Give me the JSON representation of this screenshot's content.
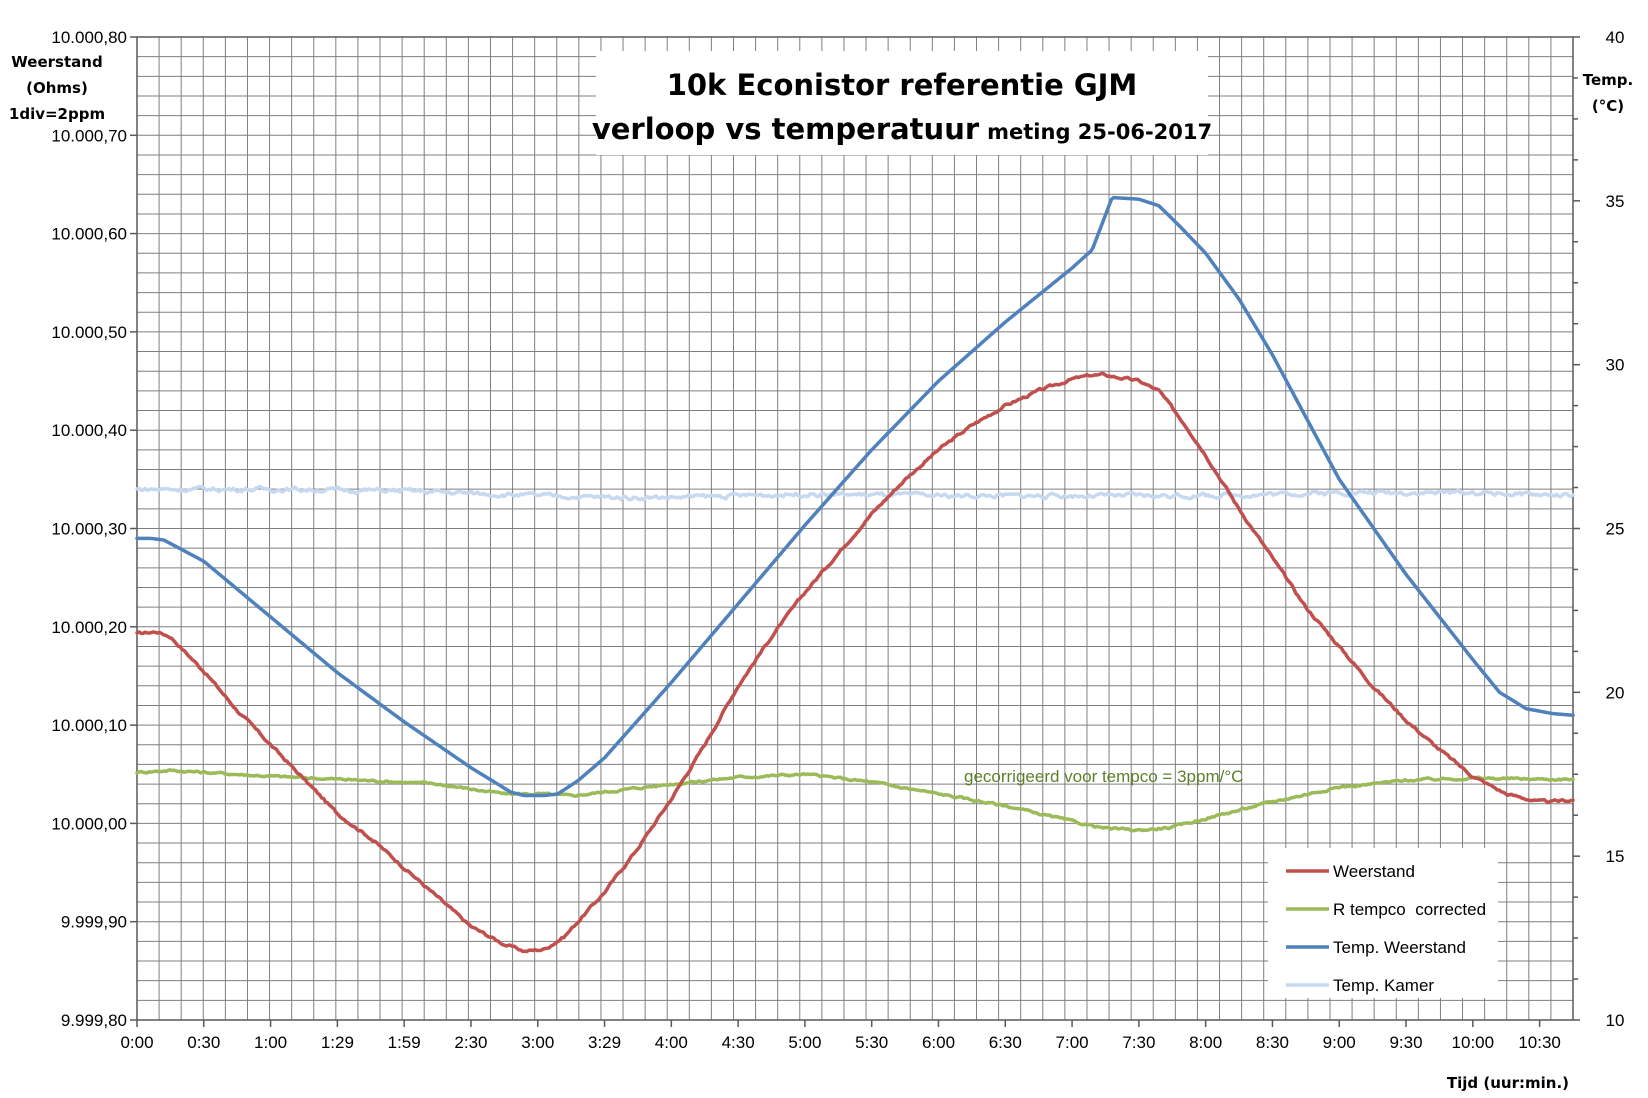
{
  "chart_data": {
    "type": "line",
    "title_line1": "10k Econistor referentie GJM",
    "title_line2_main": "verloop vs temperatuur",
    "title_line2_sub": "meting 25-06-2017",
    "ylabel_lines": [
      "Weerstand",
      "(Ohms)",
      "1div=2ppm"
    ],
    "y2label_lines": [
      "Temp.",
      "(°C)"
    ],
    "xlabel": "Tijd (uur:min.)",
    "ylim": [
      9999.8,
      10000.8
    ],
    "y_ticks": [
      9999.8,
      9999.9,
      10000.0,
      10000.1,
      10000.2,
      10000.3,
      10000.4,
      10000.5,
      10000.6,
      10000.7,
      10000.8
    ],
    "y_tick_labels": [
      "9.999,80",
      "9.999,90",
      "10.000,00",
      "10.000,10",
      "10.000,20",
      "10.000,30",
      "10.000,40",
      "10.000,50",
      "10.000,60",
      "10.000,70",
      "10.000,80"
    ],
    "y2lim": [
      10,
      40
    ],
    "y2_ticks": [
      10,
      15,
      20,
      25,
      30,
      35,
      40
    ],
    "y2_tick_labels": [
      "10",
      "15",
      "20",
      "25",
      "30",
      "35",
      "40"
    ],
    "xlim_hours": [
      0,
      10.75
    ],
    "x_ticks_hours": [
      0,
      0.5,
      1,
      1.5,
      2,
      2.5,
      3,
      3.5,
      4,
      4.5,
      5,
      5.5,
      6,
      6.5,
      7,
      7.5,
      8,
      8.5,
      9,
      9.5,
      10,
      10.5
    ],
    "x_tick_labels": [
      "0:00",
      "0:30",
      "1:00",
      "1:29",
      "1:59",
      "2:30",
      "3:00",
      "3:29",
      "4:00",
      "4:30",
      "5:00",
      "5:30",
      "6:00",
      "6:30",
      "7:00",
      "7:30",
      "8:00",
      "8:30",
      "9:00",
      "9:30",
      "10:00",
      "10:30"
    ],
    "grid": true,
    "legend_position": "bottom-right",
    "annotation": {
      "text": "gecorrigeerd voor tempco = 3ppm/°C",
      "color": "#5f7f2a"
    },
    "series": [
      {
        "name": "Weerstand",
        "axis": "left",
        "color": "#c0504d",
        "x_hours": [
          0,
          0.15,
          0.25,
          0.5,
          0.75,
          1.0,
          1.25,
          1.5,
          1.75,
          2.0,
          2.25,
          2.5,
          2.75,
          2.9,
          3.05,
          3.2,
          3.5,
          3.75,
          4.0,
          4.25,
          4.5,
          4.75,
          5.0,
          5.25,
          5.5,
          5.75,
          6.0,
          6.25,
          6.5,
          6.75,
          7.0,
          7.15,
          7.25,
          7.5,
          7.65,
          7.85,
          8.0,
          8.25,
          8.5,
          8.75,
          9.0,
          9.25,
          9.5,
          9.75,
          10.0,
          10.25,
          10.5,
          10.6,
          10.75
        ],
        "values": [
          10000.193,
          10000.195,
          10000.19,
          10000.155,
          10000.115,
          10000.08,
          10000.045,
          10000.01,
          9999.985,
          9999.955,
          9999.925,
          9999.895,
          9999.877,
          9999.87,
          9999.872,
          9999.885,
          9999.93,
          9999.975,
          10000.025,
          10000.08,
          10000.14,
          10000.19,
          10000.235,
          10000.275,
          10000.315,
          10000.35,
          10000.38,
          10000.405,
          10000.425,
          10000.44,
          10000.452,
          10000.456,
          10000.456,
          10000.45,
          10000.44,
          10000.405,
          10000.375,
          10000.32,
          10000.27,
          10000.22,
          10000.18,
          10000.14,
          10000.105,
          10000.075,
          10000.048,
          10000.03,
          10000.022,
          10000.022,
          10000.024
        ],
        "noise": 0.0015
      },
      {
        "name": "R tempco  corrected",
        "axis": "left",
        "color": "#9bbb59",
        "x_hours": [
          0,
          0.25,
          0.5,
          1.0,
          1.5,
          2.0,
          2.25,
          2.5,
          2.75,
          3.0,
          3.25,
          3.5,
          4.0,
          4.5,
          5.0,
          5.5,
          6.0,
          6.5,
          7.0,
          7.25,
          7.5,
          7.75,
          8.0,
          8.5,
          9.0,
          9.25,
          9.5,
          10.0,
          10.5,
          10.75
        ],
        "values": [
          10000.052,
          10000.054,
          10000.052,
          10000.048,
          10000.045,
          10000.042,
          10000.04,
          10000.035,
          10000.03,
          10000.03,
          10000.028,
          10000.032,
          10000.04,
          10000.047,
          10000.05,
          10000.042,
          10000.03,
          10000.018,
          10000.002,
          9999.995,
          9999.993,
          9999.996,
          10000.005,
          10000.022,
          10000.037,
          10000.04,
          10000.044,
          10000.046,
          10000.045,
          10000.045
        ],
        "noise": 0.0012
      },
      {
        "name": "Temp. Weerstand",
        "axis": "right",
        "color": "#4f81bd",
        "x_hours": [
          0,
          0.1,
          0.2,
          0.5,
          1.0,
          1.5,
          2.0,
          2.5,
          2.8,
          2.9,
          3.05,
          3.15,
          3.3,
          3.5,
          4.0,
          4.5,
          5.0,
          5.5,
          6.0,
          6.5,
          7.0,
          7.15,
          7.3,
          7.5,
          7.65,
          7.8,
          8.0,
          8.25,
          8.5,
          9.0,
          9.5,
          10.0,
          10.2,
          10.4,
          10.6,
          10.75
        ],
        "values": [
          24.7,
          24.7,
          24.65,
          24.0,
          22.3,
          20.6,
          19.1,
          17.7,
          16.95,
          16.85,
          16.85,
          16.9,
          17.3,
          18.0,
          20.3,
          22.7,
          25.1,
          27.4,
          29.5,
          31.3,
          32.95,
          33.5,
          35.1,
          35.05,
          34.85,
          34.25,
          33.4,
          32.0,
          30.3,
          26.5,
          23.6,
          21.0,
          20.0,
          19.5,
          19.35,
          19.3
        ],
        "noise": 0
      },
      {
        "name": "Temp. Kamer",
        "axis": "right",
        "color": "#c6d9f1",
        "x_hours": [
          0,
          1,
          2,
          3,
          3.5,
          4,
          5,
          6,
          7,
          8,
          9,
          10,
          10.75
        ],
        "values": [
          26.2,
          26.2,
          26.15,
          26.0,
          25.95,
          25.95,
          26.05,
          26.0,
          26.0,
          26.0,
          26.1,
          26.1,
          26.0
        ],
        "noise": 0.07
      }
    ]
  }
}
